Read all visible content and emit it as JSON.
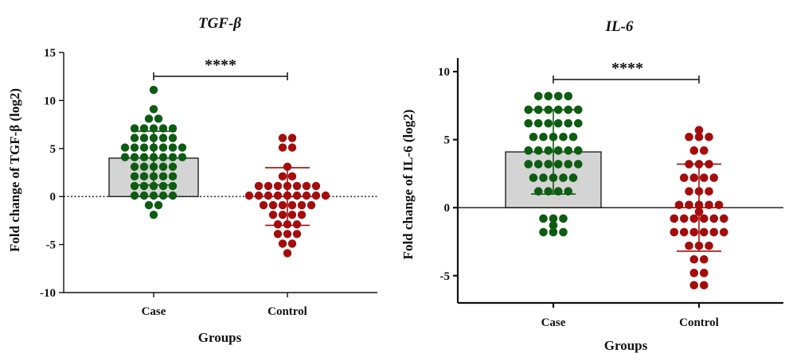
{
  "chart_data": [
    {
      "type": "scatter",
      "title": "TGF-β",
      "xlabel": "Groups",
      "ylabel": "Fold change of TGF-β (log2)",
      "ylim": [
        -10,
        15
      ],
      "yticks": [
        "15",
        "10",
        "5",
        "0",
        "-5",
        "-10"
      ],
      "yticks_values": [
        15,
        10,
        5,
        0,
        -5,
        -10
      ],
      "categories": [
        "Case",
        "Control"
      ],
      "bar_means": [
        4.0,
        0.0
      ],
      "sd_upper": [
        6.8,
        3.0
      ],
      "sd_lower": [
        1.2,
        -3.0
      ],
      "significance": "****",
      "zero_line_style": "dotted",
      "colors": {
        "case": "#0d5c12",
        "control": "#a50d0d",
        "bar": "#d4d4d4"
      },
      "series": [
        {
          "category": "Case",
          "values": [
            11.1,
            9.1,
            8.1,
            8.1,
            7.1,
            7.1,
            7.1,
            7.1,
            7.1,
            6.1,
            6.1,
            6.1,
            6.1,
            6.1,
            5.1,
            5.1,
            5.1,
            5.1,
            5.1,
            5.1,
            5.1,
            4.1,
            4.1,
            4.1,
            4.1,
            4.1,
            4.1,
            4.1,
            3.1,
            3.1,
            3.1,
            3.1,
            3.1,
            2.1,
            2.1,
            2.1,
            2.1,
            2.1,
            1.1,
            1.1,
            1.1,
            1.1,
            1.1,
            0.1,
            0.1,
            0.1,
            0.1,
            0.1,
            -0.9,
            -0.9,
            -1.9
          ]
        },
        {
          "category": "Control",
          "values": [
            6.1,
            6.1,
            5.1,
            5.1,
            3.1,
            2.1,
            2.1,
            1.1,
            1.1,
            1.1,
            1.1,
            1.1,
            1.1,
            1.1,
            0.1,
            0.1,
            0.1,
            0.1,
            0.1,
            0.1,
            0.1,
            0.1,
            0.1,
            -0.9,
            -0.9,
            -0.9,
            -0.9,
            -0.9,
            -0.9,
            -1.9,
            -1.9,
            -1.9,
            -1.9,
            -2.9,
            -2.9,
            -2.9,
            -3.9,
            -3.9,
            -3.9,
            -4.9,
            -4.9,
            -5.9
          ]
        }
      ]
    },
    {
      "type": "scatter",
      "title": "IL-6",
      "xlabel": "Groups",
      "ylabel": "Fold change of IL-6 (log2)",
      "ylim": [
        -7,
        11
      ],
      "yticks": [
        "10",
        "5",
        "0",
        "-5"
      ],
      "yticks_values": [
        10,
        5,
        0,
        -5
      ],
      "categories": [
        "Case",
        "Control"
      ],
      "bar_means": [
        4.1,
        0.0
      ],
      "sd_upper": [
        7.2,
        3.2
      ],
      "sd_lower": [
        1.0,
        -3.2
      ],
      "significance": "****",
      "zero_line_style": "solid",
      "colors": {
        "case": "#0d5c12",
        "control": "#a50d0d",
        "bar": "#d4d4d4"
      },
      "series": [
        {
          "category": "Case",
          "values": [
            8.2,
            8.2,
            8.2,
            8.2,
            7.2,
            7.2,
            7.2,
            7.2,
            7.2,
            7.2,
            6.2,
            6.2,
            6.2,
            6.2,
            6.2,
            6.2,
            5.2,
            5.2,
            5.2,
            5.2,
            5.2,
            4.2,
            4.2,
            4.2,
            4.2,
            4.2,
            4.2,
            3.2,
            3.2,
            3.2,
            3.2,
            3.2,
            3.2,
            2.2,
            2.2,
            2.2,
            2.2,
            2.2,
            1.2,
            1.2,
            1.2,
            1.2,
            -0.8,
            -0.8,
            -0.8,
            -1.3,
            -1.8,
            -1.8,
            -1.8
          ]
        },
        {
          "category": "Control",
          "values": [
            5.7,
            5.2,
            5.2,
            5.2,
            4.2,
            4.2,
            3.2,
            3.2,
            3.2,
            2.2,
            2.2,
            2.2,
            2.2,
            1.2,
            1.2,
            1.2,
            0.2,
            0.2,
            0.2,
            0.2,
            0.2,
            -0.3,
            -0.8,
            -0.8,
            -0.8,
            -0.8,
            -0.8,
            -0.8,
            -1.8,
            -1.8,
            -1.8,
            -1.8,
            -1.8,
            -1.8,
            -2.8,
            -2.8,
            -2.8,
            -3.8,
            -3.8,
            -4.8,
            -4.8,
            -5.7,
            -5.7
          ]
        }
      ]
    }
  ]
}
